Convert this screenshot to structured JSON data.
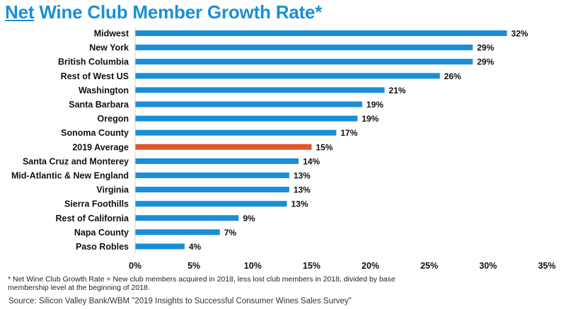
{
  "title": {
    "highlight": "Net",
    "rest": " Wine Club Member Growth Rate*"
  },
  "footnote": "* Net Wine Club Growth Rate = New club members acquired in 2018, less lost club members in 2018, divided by base membership level at the beginning of 2018.",
  "source": "Source: Silicon Valley Bank/WBM  \"2019 Insights to Successful Consumer Wines Sales Survey\"",
  "colors": {
    "title": "#1a8fd6",
    "bar": "#1a8ed6",
    "highlight_bar": "#e0572a",
    "text": "#111111"
  },
  "chart_data": {
    "type": "bar",
    "orientation": "horizontal",
    "categories": [
      "Midwest",
      "New York",
      "British Columbia",
      "Rest of West  US",
      "Washington",
      "Santa Barbara",
      "Oregon",
      "Sonoma County",
      "2019 Average",
      "Santa Cruz and Monterey",
      "Mid-Atlantic & New England",
      "Virginia",
      "Sierra Foothills",
      "Rest of California",
      "Napa County",
      "Paso Robles"
    ],
    "values": [
      32,
      29,
      29,
      26,
      21,
      19,
      19,
      17,
      15,
      14,
      13,
      13,
      13,
      9,
      7,
      4
    ],
    "plotted_values": [
      31.6,
      28.7,
      28.7,
      25.9,
      21.2,
      19.3,
      18.9,
      17.1,
      15.0,
      13.9,
      13.1,
      13.1,
      12.9,
      8.8,
      7.2,
      4.2
    ],
    "value_labels": [
      "32%",
      "29%",
      "29%",
      "26%",
      "21%",
      "19%",
      "19%",
      "17%",
      "15%",
      "14%",
      "13%",
      "13%",
      "13%",
      "9%",
      "7%",
      "4%"
    ],
    "highlight_category": "2019 Average",
    "xlim": [
      0,
      35
    ],
    "xticks": [
      0,
      5,
      10,
      15,
      20,
      25,
      30,
      35
    ],
    "xtick_labels": [
      "0%",
      "5%",
      "10%",
      "15%",
      "20%",
      "25%",
      "30%",
      "35%"
    ],
    "xlabel": "",
    "ylabel": "",
    "grid": false,
    "legend": false
  }
}
